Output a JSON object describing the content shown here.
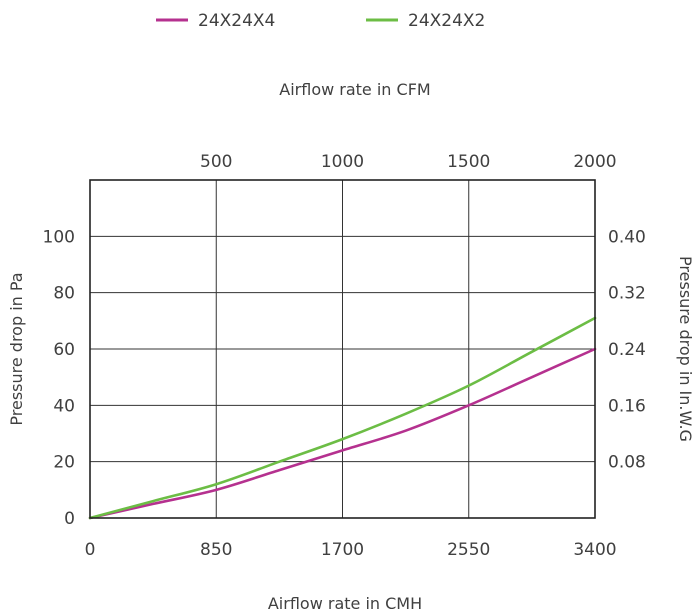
{
  "chart_data": {
    "type": "line",
    "legend": {
      "placement": "top"
    },
    "grid": true,
    "x_bottom": {
      "label": "Airflow rate in CMH",
      "ticks": [
        0,
        850,
        1700,
        2550,
        3400
      ],
      "tick_labels": [
        "0",
        "850",
        "1700",
        "2550",
        "3400"
      ],
      "range": [
        0,
        3400
      ]
    },
    "x_top": {
      "label": "Airflow rate in CFM",
      "ticks": [
        500,
        1000,
        1500,
        2000
      ],
      "tick_labels": [
        "500",
        "1000",
        "1500",
        "2000"
      ],
      "range": [
        0,
        2000
      ]
    },
    "y_left": {
      "label": "Pressure drop in Pa",
      "ticks": [
        0,
        20,
        40,
        60,
        80,
        100
      ],
      "tick_labels": [
        "0",
        "20",
        "40",
        "60",
        "80",
        "100"
      ],
      "range": [
        0,
        120
      ]
    },
    "y_right": {
      "label": "Pressure drop in In.W.G",
      "ticks": [
        0.08,
        0.16,
        0.24,
        0.32,
        0.4
      ],
      "tick_labels": [
        "0.08",
        "0.16",
        "0.24",
        "0.32",
        "0.40"
      ],
      "range": [
        0,
        0.48
      ]
    },
    "series": [
      {
        "name": "24X24X4",
        "color": "#b5318f",
        "x": [
          0,
          425,
          850,
          1275,
          1700,
          2125,
          2550,
          2975,
          3400
        ],
        "y": [
          0,
          5,
          10,
          17,
          24,
          31,
          40,
          50,
          60
        ]
      },
      {
        "name": "24X24X2",
        "color": "#6cbd45",
        "x": [
          0,
          425,
          850,
          1275,
          1700,
          2125,
          2550,
          2975,
          3400
        ],
        "y": [
          0,
          6,
          12,
          20,
          28,
          37,
          47,
          59,
          71
        ]
      }
    ]
  }
}
